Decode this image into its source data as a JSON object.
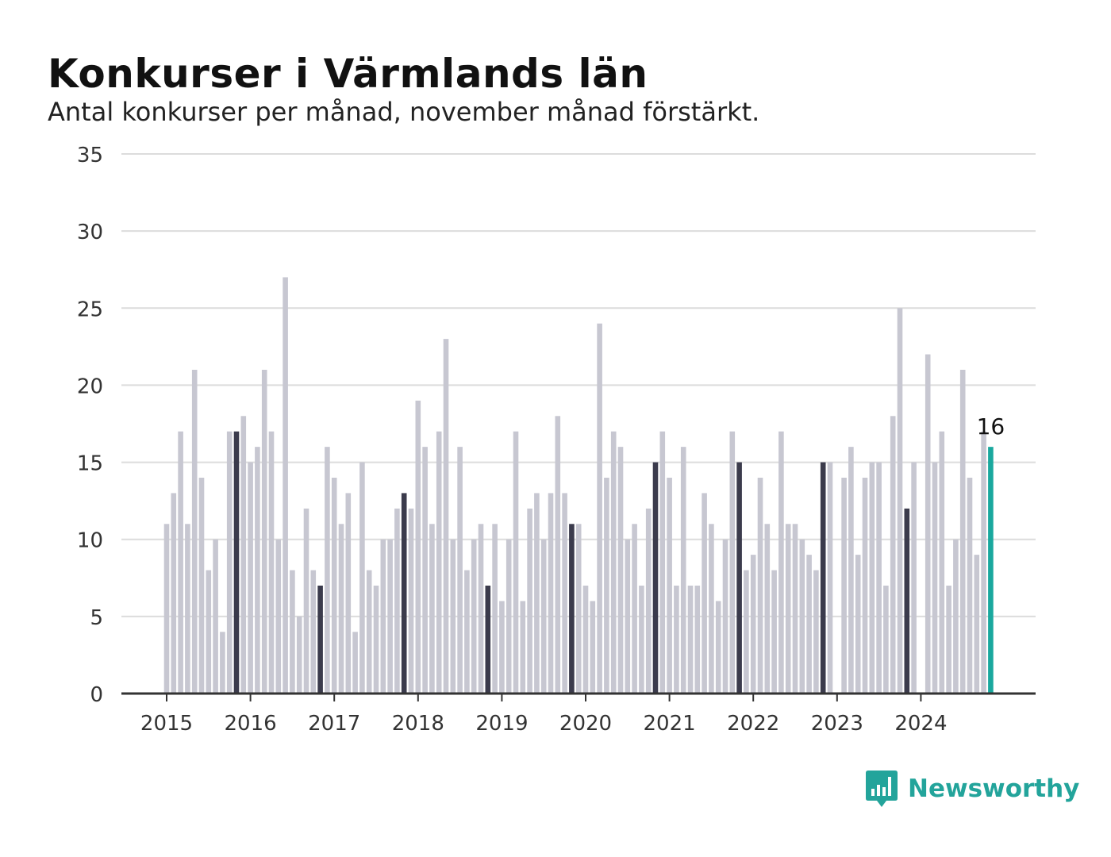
{
  "title": "Konkurser i Värmlands län",
  "subtitle": "Antal konkurser per månad, november månad förstärkt.",
  "brand": "Newsworthy",
  "colors": {
    "bar": "#c7c7d1",
    "highlight": "#3b3b4c",
    "latest": "#1aa89e",
    "grid": "#dcdcdc",
    "axis": "#333333",
    "text": "#333333",
    "brand": "#23a49b"
  },
  "chart_data": {
    "type": "bar",
    "start_year": 2015,
    "start_month": 1,
    "highlight_month": 11,
    "ylim": [
      0,
      35
    ],
    "yticks": [
      0,
      5,
      10,
      15,
      20,
      25,
      30,
      35
    ],
    "xticks": [
      "2015",
      "2016",
      "2017",
      "2018",
      "2019",
      "2020",
      "2021",
      "2022",
      "2023",
      "2024"
    ],
    "values": [
      11,
      13,
      17,
      11,
      21,
      14,
      8,
      10,
      4,
      17,
      17,
      18,
      15,
      16,
      21,
      17,
      10,
      27,
      8,
      5,
      12,
      8,
      7,
      16,
      14,
      11,
      13,
      4,
      15,
      8,
      7,
      10,
      10,
      12,
      13,
      12,
      19,
      16,
      11,
      17,
      23,
      10,
      16,
      8,
      10,
      11,
      7,
      11,
      6,
      10,
      17,
      6,
      12,
      13,
      10,
      13,
      18,
      13,
      11,
      11,
      7,
      6,
      24,
      14,
      17,
      16,
      10,
      11,
      7,
      12,
      15,
      17,
      14,
      7,
      16,
      7,
      7,
      13,
      11,
      6,
      10,
      17,
      15,
      8,
      9,
      14,
      11,
      8,
      17,
      11,
      11,
      10,
      9,
      8,
      15,
      15,
      0,
      14,
      16,
      9,
      14,
      15,
      15,
      7,
      18,
      25,
      12,
      15,
      0,
      22,
      15,
      17,
      7,
      10,
      21,
      14,
      9,
      17,
      16
    ],
    "latest_label": "16"
  }
}
